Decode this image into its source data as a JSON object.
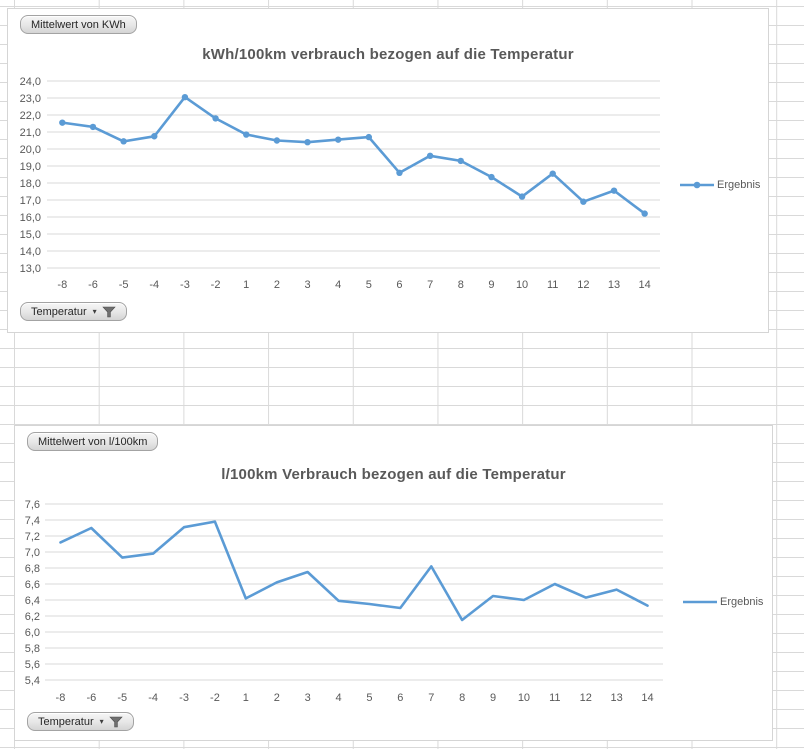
{
  "colors": {
    "series_blue": "#5b9bd5",
    "chart_grid": "#d9d9d9",
    "axis_text": "#595959",
    "sheet_grid": "#d9d9d9",
    "chart_border": "#d5d5d5"
  },
  "chart_data": [
    {
      "type": "line",
      "title": "kWh/100km verbrauch bezogen auf die Temperatur",
      "field_button": "Mittelwert von KWh",
      "filter_button": "Temperatur",
      "legend": [
        "Ergebnis"
      ],
      "legend_position": "right",
      "grid": true,
      "categories": [
        "-8",
        "-6",
        "-5",
        "-4",
        "-3",
        "-2",
        "1",
        "2",
        "3",
        "4",
        "5",
        "6",
        "7",
        "8",
        "9",
        "10",
        "11",
        "12",
        "13",
        "14"
      ],
      "series": [
        {
          "name": "Ergebnis",
          "color": "#5b9bd5",
          "markers": true,
          "values": [
            21.55,
            21.3,
            20.45,
            20.75,
            23.05,
            21.8,
            20.85,
            20.5,
            20.4,
            20.55,
            20.7,
            18.6,
            19.6,
            19.3,
            18.35,
            17.2,
            18.55,
            16.9,
            17.55,
            16.2
          ]
        }
      ],
      "ylim": [
        13.0,
        24.0
      ],
      "ytick_step": 1.0,
      "ytick_labels_top_to_bottom": [
        "24,0",
        "23,0",
        "22,0",
        "21,0",
        "20,0",
        "19,0",
        "18,0",
        "17,0",
        "16,0",
        "15,0",
        "14,0",
        "13,0"
      ]
    },
    {
      "type": "line",
      "title": "l/100km Verbrauch bezogen auf die Temperatur",
      "field_button": "Mittelwert von l/100km",
      "filter_button": "Temperatur",
      "legend": [
        "Ergebnis"
      ],
      "legend_position": "right",
      "grid": true,
      "categories": [
        "-8",
        "-6",
        "-5",
        "-4",
        "-3",
        "-2",
        "1",
        "2",
        "3",
        "4",
        "5",
        "6",
        "7",
        "8",
        "9",
        "10",
        "11",
        "12",
        "13",
        "14"
      ],
      "series": [
        {
          "name": "Ergebnis",
          "color": "#5b9bd5",
          "markers": false,
          "values": [
            7.12,
            7.3,
            6.93,
            6.98,
            7.31,
            7.38,
            6.42,
            6.62,
            6.75,
            6.39,
            6.35,
            6.3,
            6.82,
            6.15,
            6.45,
            6.4,
            6.6,
            6.43,
            6.53,
            6.33
          ]
        }
      ],
      "ylim": [
        5.4,
        7.6
      ],
      "ytick_step": 0.2,
      "ytick_labels_top_to_bottom": [
        "7,6",
        "7,4",
        "7,2",
        "7,0",
        "6,8",
        "6,6",
        "6,4",
        "6,2",
        "6,0",
        "5,8",
        "5,6",
        "5,4"
      ]
    }
  ]
}
